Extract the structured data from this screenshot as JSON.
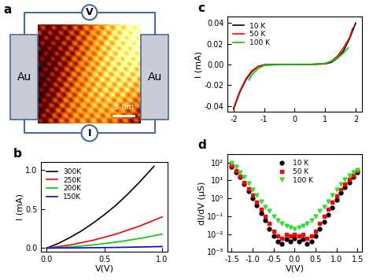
{
  "diagram": {
    "label": "a",
    "electrodes": [
      "Au",
      "Au"
    ],
    "voltmeter": "V",
    "ammeter": "I",
    "scale_bar": "3 nm"
  },
  "chart_data": [
    {
      "type": "line",
      "title": "b",
      "x_label": "V(V)",
      "y_label": "I (mA)",
      "xlim": [
        -0.05,
        1.05
      ],
      "ylim": [
        -0.05,
        1.1
      ],
      "xticks": [
        0.0,
        0.5,
        1.0
      ],
      "yticks": [
        0.0,
        0.5,
        1.0
      ],
      "legend": "upper left",
      "series": [
        {
          "name": "300K",
          "color": "#000000",
          "line_style": "solid",
          "x": [
            0.0,
            0.1,
            0.2,
            0.3,
            0.4,
            0.5,
            0.6,
            0.7,
            0.8,
            0.93
          ],
          "values": [
            0.0,
            0.06,
            0.135,
            0.22,
            0.32,
            0.43,
            0.55,
            0.69,
            0.84,
            1.05
          ]
        },
        {
          "name": "250K",
          "color": "#ff0000",
          "line_style": "solid",
          "x": [
            0.0,
            0.1,
            0.2,
            0.3,
            0.4,
            0.5,
            0.6,
            0.7,
            0.8,
            0.9,
            1.0
          ],
          "values": [
            0.0,
            0.02,
            0.04,
            0.07,
            0.1,
            0.14,
            0.18,
            0.23,
            0.28,
            0.34,
            0.4
          ]
        },
        {
          "name": "200K",
          "color": "#00cc00",
          "line_style": "solid",
          "x": [
            0.0,
            0.1,
            0.2,
            0.3,
            0.4,
            0.5,
            0.6,
            0.7,
            0.8,
            0.9,
            1.0
          ],
          "values": [
            0.0,
            0.006,
            0.015,
            0.027,
            0.041,
            0.058,
            0.077,
            0.099,
            0.123,
            0.15,
            0.18
          ]
        },
        {
          "name": "150K",
          "color": "#0000ff",
          "line_style": "solid",
          "x": [
            0.0,
            0.2,
            0.4,
            0.6,
            0.8,
            1.0
          ],
          "values": [
            0.0,
            0.002,
            0.005,
            0.009,
            0.014,
            0.02
          ]
        }
      ]
    },
    {
      "type": "line",
      "title": "c",
      "y_label": "I (mA)",
      "xlim": [
        -2.2,
        2.2
      ],
      "ylim": [
        -0.046,
        0.046
      ],
      "xticks": [
        -2,
        -1,
        0,
        1,
        2
      ],
      "yticks": [
        -0.04,
        -0.02,
        {
          "value": 0.0,
          "label": "0.00"
        },
        0.02,
        0.04
      ],
      "legend": "upper left",
      "series": [
        {
          "name": "10 K",
          "color": "#000000",
          "line_style": "solid",
          "x": [
            -2.0,
            -1.8,
            -1.6,
            -1.4,
            -1.2,
            -1.0,
            -0.5,
            0.0,
            0.5,
            1.0,
            1.2,
            1.4,
            1.6,
            1.8,
            2.0
          ],
          "values": [
            -0.043,
            -0.027,
            -0.015,
            -0.007,
            -0.002,
            -0.0005,
            0.0,
            0.0,
            0.0,
            0.0005,
            0.002,
            0.006,
            0.013,
            0.025,
            0.04
          ]
        },
        {
          "name": "50 K",
          "color": "#ff0000",
          "line_style": "solid",
          "x": [
            -2.0,
            -1.8,
            -1.6,
            -1.4,
            -1.2,
            -1.0,
            -0.5,
            0.0,
            0.5,
            1.0,
            1.2,
            1.4,
            1.6,
            1.8,
            1.9
          ],
          "values": [
            -0.042,
            -0.026,
            -0.014,
            -0.006,
            -0.002,
            -0.0005,
            0.0,
            0.0,
            0.0,
            0.0007,
            0.003,
            0.008,
            0.016,
            0.026,
            0.035
          ]
        },
        {
          "name": "100 K",
          "color": "#00cc00",
          "line_style": "solid",
          "x": [
            -1.5,
            -1.4,
            -1.2,
            -1.0,
            -0.5,
            0.0,
            0.5,
            1.0,
            1.2,
            1.4,
            1.6,
            1.75
          ],
          "values": [
            -0.015,
            -0.01,
            -0.004,
            -0.001,
            0.0,
            0.0,
            0.0,
            0.001,
            0.003,
            0.006,
            0.011,
            0.016
          ]
        }
      ]
    },
    {
      "type": "scatter",
      "title": "d",
      "x_label": "V(V)",
      "y_label": "dI/dV (μS)",
      "log": "y",
      "xlim": [
        -1.6,
        1.6
      ],
      "ylim": [
        0.001,
        300
      ],
      "xticks": [
        -1.5,
        -1.0,
        -0.5,
        0.0,
        0.5,
        1.0,
        1.5
      ],
      "yticks": [
        {
          "value": 0.001,
          "label": "10⁻³"
        },
        {
          "value": 0.01,
          "label": "10⁻²"
        },
        {
          "value": 0.1,
          "label": "10⁻¹"
        },
        {
          "value": 1,
          "label": "10⁰"
        },
        {
          "value": 10,
          "label": "10¹"
        },
        {
          "value": 100,
          "label": "10²"
        }
      ],
      "legend": "upper center",
      "x": [
        -1.5,
        -1.4,
        -1.3,
        -1.2,
        -1.1,
        -1.0,
        -0.9,
        -0.8,
        -0.7,
        -0.6,
        -0.5,
        -0.4,
        -0.3,
        -0.2,
        -0.1,
        0.0,
        0.1,
        0.2,
        0.3,
        0.4,
        0.5,
        0.6,
        0.7,
        0.8,
        0.9,
        1.0,
        1.1,
        1.2,
        1.3,
        1.4,
        1.5
      ],
      "series": [
        {
          "name": "10 K",
          "color": "#000000",
          "marker": "circle",
          "values": [
            60,
            30,
            15,
            6,
            2.5,
            1,
            0.4,
            0.15,
            0.06,
            0.02,
            0.008,
            0.004,
            0.003,
            0.005,
            0.004,
            0.006,
            0.004,
            0.005,
            0.003,
            0.004,
            0.008,
            0.02,
            0.05,
            0.12,
            0.3,
            0.8,
            2,
            4,
            8,
            15,
            30
          ]
        },
        {
          "name": "50 K",
          "color": "#ff0000",
          "marker": "square",
          "values": [
            70,
            35,
            18,
            8,
            3.5,
            1.5,
            0.6,
            0.25,
            0.1,
            0.04,
            0.015,
            0.008,
            0.006,
            0.01,
            0.008,
            0.01,
            0.008,
            0.01,
            0.006,
            0.008,
            0.015,
            0.04,
            0.1,
            0.25,
            0.6,
            1.4,
            3,
            6,
            12,
            20,
            35
          ]
        },
        {
          "name": "100 K",
          "color": "#33dd33",
          "marker": "triangle_down",
          "values": [
            100,
            60,
            30,
            15,
            7,
            3,
            1.5,
            0.7,
            0.35,
            0.2,
            0.1,
            0.06,
            0.04,
            0.03,
            0.025,
            0.02,
            0.025,
            0.03,
            0.04,
            0.06,
            0.1,
            0.2,
            0.35,
            0.7,
            1.5,
            3,
            6,
            12,
            20,
            30,
            40
          ]
        }
      ]
    }
  ]
}
